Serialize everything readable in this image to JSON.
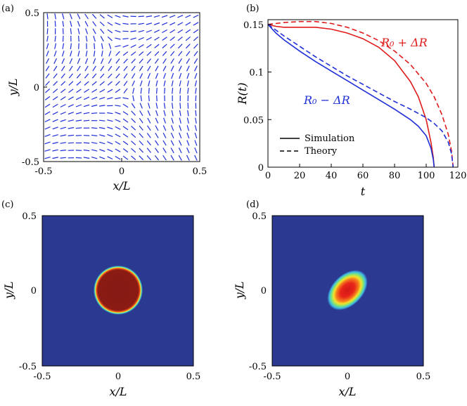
{
  "panels": {
    "a": {
      "label": "(a)",
      "chart_data": {
        "type": "quiver",
        "xlabel": "x/L",
        "ylabel": "y/L",
        "xlim": [
          -0.5,
          0.5
        ],
        "ylim": [
          -0.5,
          0.5
        ],
        "xticks": [
          "-0.5",
          "0",
          "0.5"
        ],
        "yticks": [
          "-0.5",
          "0",
          "0.5"
        ],
        "color": "#1f2fd6",
        "grid_n": 20,
        "defects": [
          {
            "x": -0.05,
            "y": 0.27,
            "charge": -0.5
          },
          {
            "x": 0.03,
            "y": -0.07,
            "charge": -0.5
          }
        ]
      }
    },
    "b": {
      "label": "(b)",
      "chart_data": {
        "type": "line",
        "xlabel": "t",
        "ylabel": "R(t)",
        "xlim": [
          0,
          120
        ],
        "ylim": [
          0,
          0.155
        ],
        "xticks": [
          "0",
          "20",
          "40",
          "60",
          "80",
          "100",
          "120"
        ],
        "yticks": [
          "0",
          "0.05",
          "0.1",
          "0.15"
        ],
        "annotations": [
          {
            "text": "R₀ + ΔR",
            "color": "#e01b1b"
          },
          {
            "text": "R₀ − ΔR",
            "color": "#1f2fd6"
          }
        ],
        "legend": {
          "placement": "bottom-left",
          "entries": [
            {
              "name": "Simulation",
              "style": "solid"
            },
            {
              "name": "Theory",
              "style": "dashed"
            }
          ]
        },
        "series": [
          {
            "annotation": "R₀ + ΔR",
            "style": "solid",
            "color": "#e01b1b",
            "x": [
              0,
              5,
              10,
              20,
              30,
              40,
              50,
              60,
              70,
              80,
              90,
              95,
              100,
              103,
              104.5,
              105
            ],
            "y": [
              0.15,
              0.148,
              0.147,
              0.147,
              0.147,
              0.145,
              0.141,
              0.135,
              0.126,
              0.112,
              0.09,
              0.074,
              0.05,
              0.026,
              0.01,
              0.0
            ]
          },
          {
            "annotation": "R₀ + ΔR",
            "style": "dashed",
            "color": "#e01b1b",
            "x": [
              0,
              5,
              10,
              20,
              30,
              40,
              50,
              60,
              70,
              80,
              90,
              100,
              105,
              110,
              114,
              116,
              117
            ],
            "y": [
              0.15,
              0.151,
              0.152,
              0.153,
              0.153,
              0.151,
              0.147,
              0.141,
              0.133,
              0.122,
              0.108,
              0.088,
              0.074,
              0.055,
              0.034,
              0.017,
              0.0
            ]
          },
          {
            "annotation": "R₀ − ΔR",
            "style": "solid",
            "color": "#1f2fd6",
            "x": [
              0,
              5,
              10,
              20,
              30,
              40,
              50,
              60,
              70,
              80,
              90,
              95,
              100,
              103,
              104.5,
              105
            ],
            "y": [
              0.15,
              0.141,
              0.134,
              0.122,
              0.111,
              0.101,
              0.091,
              0.081,
              0.071,
              0.061,
              0.05,
              0.043,
              0.033,
              0.02,
              0.008,
              0.0
            ]
          },
          {
            "annotation": "R₀ − ΔR",
            "style": "dashed",
            "color": "#1f2fd6",
            "x": [
              0,
              5,
              10,
              20,
              30,
              40,
              50,
              60,
              70,
              80,
              90,
              100,
              105,
              110,
              114,
              116,
              117
            ],
            "y": [
              0.15,
              0.144,
              0.138,
              0.127,
              0.116,
              0.106,
              0.096,
              0.087,
              0.078,
              0.069,
              0.061,
              0.052,
              0.046,
              0.038,
              0.026,
              0.014,
              0.0
            ]
          }
        ]
      }
    },
    "c": {
      "label": "(c)",
      "chart_data": {
        "type": "heatmap",
        "xlabel": "x/L",
        "ylabel": "y/L",
        "xlim": [
          -0.5,
          0.5
        ],
        "ylim": [
          -0.5,
          0.5
        ],
        "xticks": [
          "-0.5",
          "0",
          "0.5"
        ],
        "yticks": [
          "-0.5",
          "0",
          "0.5"
        ],
        "background": "#2b3990",
        "blob": {
          "shape": "circle",
          "cx": 0.0,
          "cy": 0.0,
          "radius": 0.15,
          "color": "#861a14"
        }
      }
    },
    "d": {
      "label": "(d)",
      "chart_data": {
        "type": "heatmap",
        "xlabel": "x/L",
        "ylabel": "y/L",
        "xlim": [
          -0.5,
          0.5
        ],
        "ylim": [
          -0.5,
          0.5
        ],
        "xticks": [
          "-0.5",
          "0",
          "0.5"
        ],
        "yticks": [
          "-0.5",
          "0",
          "0.5"
        ],
        "background": "#2b3990",
        "blob": {
          "shape": "ellipse",
          "cx": 0.0,
          "cy": 0.0,
          "rx": 0.15,
          "ry": 0.09,
          "angle_deg": 45,
          "color": "#d11818"
        }
      }
    }
  }
}
